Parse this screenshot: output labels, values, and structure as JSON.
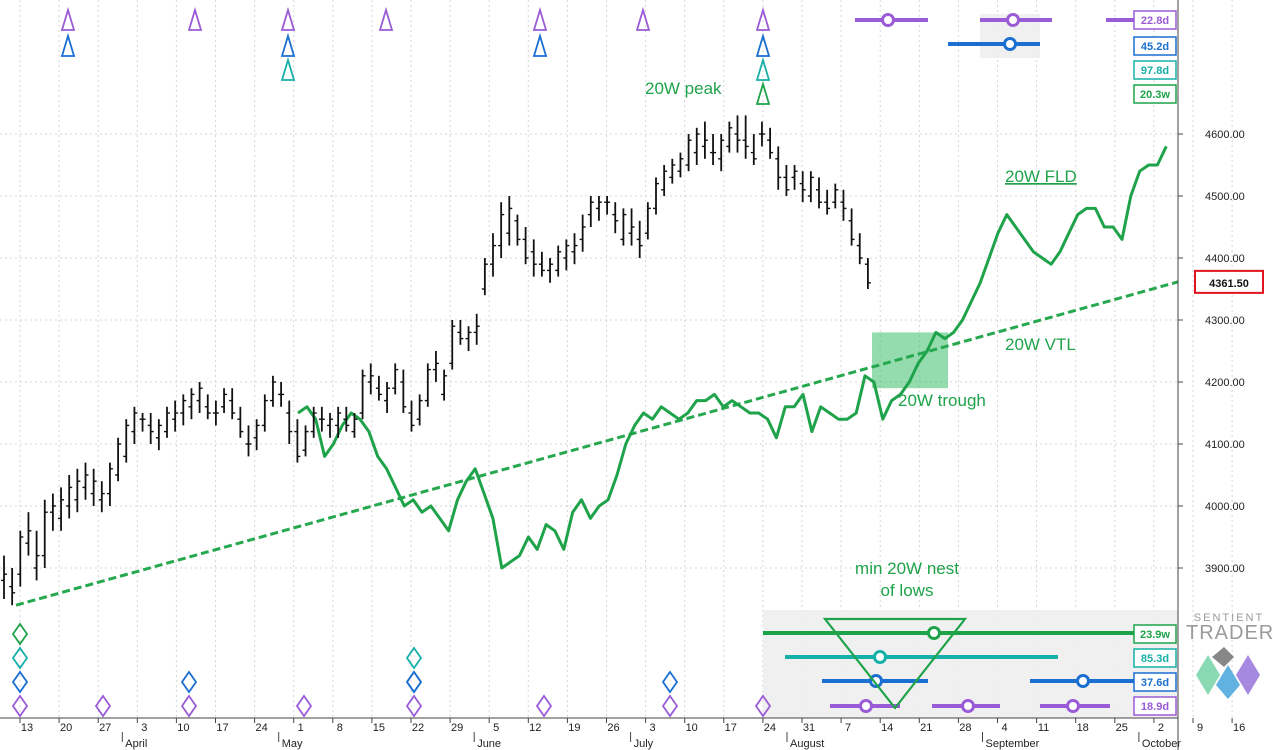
{
  "brand": {
    "line1": "SENTIENT",
    "line2": "TRADER"
  },
  "colors": {
    "price": "#111111",
    "fld": "#1fa34a",
    "vtl": "#26a84f",
    "w20": "#1fa34a",
    "teal": "#17b0a8",
    "blue": "#1a6fd0",
    "purple": "#9a5bd6",
    "current_price_box": "#e0141e"
  },
  "chart_data": {
    "type": "line",
    "y_axis": {
      "ticks": [
        "4600.00",
        "4500.00",
        "4400.00",
        "4300.00",
        "4200.00",
        "4100.00",
        "4000.00",
        "3900.00"
      ],
      "current_price": "4361.50"
    },
    "x_axis": {
      "day_labels": [
        "13",
        "20",
        "27",
        "3",
        "10",
        "17",
        "24",
        "1",
        "8",
        "15",
        "22",
        "29",
        "5",
        "12",
        "19",
        "26",
        "3",
        "10",
        "17",
        "24",
        "31",
        "7",
        "14",
        "21",
        "28",
        "4",
        "11",
        "18",
        "25",
        "2",
        "9",
        "16"
      ],
      "month_labels": [
        "April",
        "May",
        "June",
        "July",
        "August",
        "September",
        "October"
      ]
    },
    "series": [
      {
        "style": "ohlc-bars",
        "values": [
          [
            3880,
            3920,
            3850,
            3890
          ],
          [
            3870,
            3900,
            3840,
            3860
          ],
          [
            3890,
            3960,
            3870,
            3950
          ],
          [
            3940,
            3990,
            3920,
            3960
          ],
          [
            3900,
            3960,
            3880,
            3920
          ],
          [
            3920,
            4010,
            3900,
            3990
          ],
          [
            3990,
            4020,
            3960,
            4000
          ],
          [
            3980,
            4030,
            3960,
            4010
          ],
          [
            4000,
            4050,
            3980,
            4030
          ],
          [
            4010,
            4060,
            3990,
            4040
          ],
          [
            4030,
            4070,
            4010,
            4050
          ],
          [
            4020,
            4060,
            4000,
            4040
          ],
          [
            4010,
            4040,
            3990,
            4020
          ],
          [
            4020,
            4070,
            4000,
            4060
          ],
          [
            4050,
            4110,
            4040,
            4100
          ],
          [
            4080,
            4140,
            4070,
            4130
          ],
          [
            4120,
            4160,
            4100,
            4150
          ],
          [
            4140,
            4150,
            4120,
            4140
          ],
          [
            4130,
            4150,
            4100,
            4120
          ],
          [
            4110,
            4140,
            4090,
            4130
          ],
          [
            4120,
            4160,
            4110,
            4150
          ],
          [
            4140,
            4170,
            4120,
            4150
          ],
          [
            4150,
            4180,
            4130,
            4170
          ],
          [
            4160,
            4190,
            4140,
            4180
          ],
          [
            4170,
            4200,
            4150,
            4190
          ],
          [
            4160,
            4180,
            4140,
            4150
          ],
          [
            4150,
            4170,
            4130,
            4150
          ],
          [
            4160,
            4190,
            4150,
            4180
          ],
          [
            4170,
            4190,
            4140,
            4150
          ],
          [
            4140,
            4160,
            4110,
            4120
          ],
          [
            4100,
            4130,
            4080,
            4100
          ],
          [
            4110,
            4140,
            4090,
            4130
          ],
          [
            4130,
            4180,
            4120,
            4170
          ],
          [
            4170,
            4210,
            4160,
            4200
          ],
          [
            4180,
            4200,
            4160,
            4180
          ],
          [
            4150,
            4170,
            4100,
            4120
          ],
          [
            4120,
            4140,
            4070,
            4080
          ],
          [
            4090,
            4130,
            4080,
            4120
          ],
          [
            4120,
            4160,
            4110,
            4150
          ],
          [
            4140,
            4160,
            4120,
            4140
          ],
          [
            4130,
            4150,
            4110,
            4140
          ],
          [
            4130,
            4160,
            4110,
            4150
          ],
          [
            4140,
            4160,
            4120,
            4130
          ],
          [
            4120,
            4150,
            4110,
            4140
          ],
          [
            4150,
            4220,
            4140,
            4210
          ],
          [
            4200,
            4230,
            4180,
            4210
          ],
          [
            4190,
            4210,
            4170,
            4180
          ],
          [
            4170,
            4200,
            4150,
            4190
          ],
          [
            4190,
            4230,
            4180,
            4220
          ],
          [
            4200,
            4220,
            4150,
            4160
          ],
          [
            4150,
            4170,
            4120,
            4130
          ],
          [
            4140,
            4180,
            4130,
            4170
          ],
          [
            4170,
            4230,
            4160,
            4220
          ],
          [
            4220,
            4250,
            4200,
            4230
          ],
          [
            4180,
            4220,
            4170,
            4210
          ],
          [
            4230,
            4300,
            4220,
            4290
          ],
          [
            4280,
            4300,
            4260,
            4270
          ],
          [
            4270,
            4290,
            4250,
            4280
          ],
          [
            4280,
            4310,
            4260,
            4290
          ],
          [
            4350,
            4400,
            4340,
            4390
          ],
          [
            4390,
            4440,
            4370,
            4420
          ],
          [
            4420,
            4490,
            4400,
            4470
          ],
          [
            4440,
            4500,
            4420,
            4480
          ],
          [
            4460,
            4470,
            4420,
            4430
          ],
          [
            4430,
            4450,
            4390,
            4400
          ],
          [
            4410,
            4430,
            4370,
            4390
          ],
          [
            4390,
            4410,
            4370,
            4380
          ],
          [
            4380,
            4400,
            4360,
            4390
          ],
          [
            4380,
            4420,
            4370,
            4410
          ],
          [
            4400,
            4430,
            4380,
            4420
          ],
          [
            4410,
            4440,
            4390,
            4420
          ],
          [
            4430,
            4470,
            4410,
            4450
          ],
          [
            4470,
            4500,
            4450,
            4490
          ],
          [
            4480,
            4500,
            4460,
            4490
          ],
          [
            4490,
            4500,
            4470,
            4490
          ],
          [
            4470,
            4490,
            4440,
            4460
          ],
          [
            4430,
            4480,
            4420,
            4470
          ],
          [
            4440,
            4480,
            4420,
            4450
          ],
          [
            4430,
            4460,
            4400,
            4420
          ],
          [
            4440,
            4490,
            4430,
            4480
          ],
          [
            4480,
            4530,
            4470,
            4520
          ],
          [
            4510,
            4550,
            4500,
            4540
          ],
          [
            4530,
            4560,
            4520,
            4550
          ],
          [
            4540,
            4570,
            4530,
            4560
          ],
          [
            4550,
            4600,
            4540,
            4590
          ],
          [
            4570,
            4610,
            4550,
            4600
          ],
          [
            4580,
            4620,
            4560,
            4590
          ],
          [
            4570,
            4600,
            4550,
            4570
          ],
          [
            4560,
            4600,
            4540,
            4590
          ],
          [
            4580,
            4620,
            4570,
            4610
          ],
          [
            4600,
            4630,
            4570,
            4590
          ],
          [
            4590,
            4630,
            4560,
            4580
          ],
          [
            4570,
            4600,
            4550,
            4560
          ],
          [
            4600,
            4620,
            4580,
            4600
          ],
          [
            4590,
            4610,
            4560,
            4570
          ],
          [
            4560,
            4580,
            4510,
            4530
          ],
          [
            4530,
            4550,
            4500,
            4510
          ],
          [
            4530,
            4550,
            4510,
            4540
          ],
          [
            4520,
            4540,
            4490,
            4510
          ],
          [
            4500,
            4540,
            4490,
            4530
          ],
          [
            4510,
            4530,
            4480,
            4490
          ],
          [
            4490,
            4510,
            4470,
            4480
          ],
          [
            4490,
            4520,
            4480,
            4510
          ],
          [
            4490,
            4510,
            4460,
            4480
          ],
          [
            4460,
            4480,
            4420,
            4430
          ],
          [
            4420,
            4440,
            4390,
            4400
          ],
          [
            4390,
            4400,
            4350,
            4360
          ]
        ]
      },
      {
        "name": "20W FLD",
        "style": "line",
        "values": [
          [
            4150,
            4160,
            4140,
            4080,
            4100,
            4130,
            4150,
            4140,
            4120,
            4080,
            4060,
            4030,
            4000,
            4010,
            3990,
            4000,
            3980,
            3960,
            4010,
            4040,
            4060,
            4020,
            3980,
            3900,
            3910,
            3920,
            3950,
            3930,
            3970,
            3960,
            3930,
            3990,
            4010,
            3980,
            4000,
            4010,
            4050,
            4100,
            4130,
            4150,
            4140,
            4160,
            4150,
            4140,
            4150,
            4170,
            4170,
            4180,
            4160,
            4170,
            4160,
            4150,
            4150,
            4140,
            4110,
            4160,
            4160,
            4180,
            4120,
            4160,
            4150,
            4140,
            4140,
            4150,
            4210,
            4200,
            4140,
            4170,
            4180,
            4200,
            4230,
            4250,
            4280,
            4270,
            4280,
            4300,
            4330,
            4360,
            4400,
            4440,
            4470,
            4450,
            4430,
            4410,
            4400,
            4390,
            4410,
            4440,
            4470,
            4480,
            4480,
            4450,
            4450,
            4430,
            4500,
            4540,
            4550,
            4550,
            4580
          ]
        ]
      },
      {
        "name": "20W VTL",
        "style": "dashed-line",
        "values": [
          [
            3840
          ],
          [
            4361.5
          ]
        ]
      }
    ],
    "annotations": [
      "20W peak",
      "20W FLD",
      "20W VTL",
      "20W trough",
      "min 20W nest",
      "of lows"
    ],
    "cycle_badges": {
      "top": [
        "22.8d",
        "45.2d",
        "97.8d",
        "20.3w"
      ],
      "bottom": [
        "23.9w",
        "85.3d",
        "37.6d",
        "18.9d"
      ]
    },
    "grid": true
  }
}
